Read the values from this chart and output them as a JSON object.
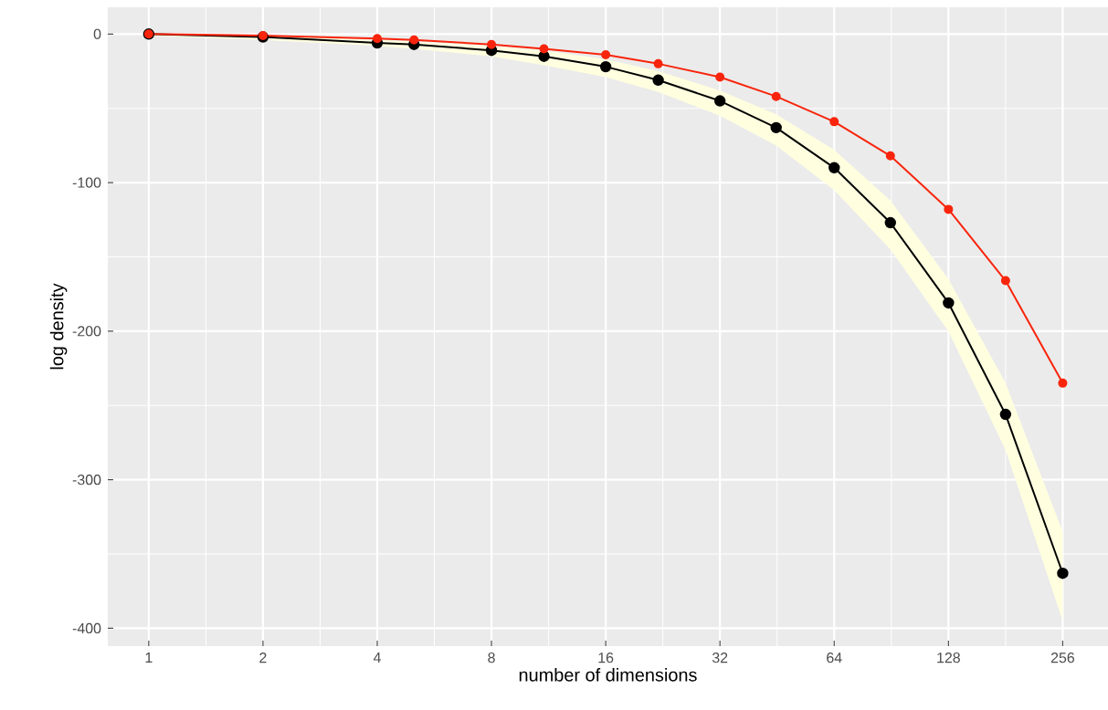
{
  "chart_data": {
    "type": "line",
    "xlabel": "number of dimensions",
    "ylabel": "log density",
    "x": [
      1,
      2,
      4,
      5,
      8,
      11,
      16,
      22,
      32,
      45,
      64,
      90,
      128,
      181,
      256
    ],
    "series": [
      {
        "color": "#000000",
        "values": [
          0,
          -2,
          -6,
          -7,
          -11,
          -15,
          -22,
          -31,
          -45,
          -63,
          -90,
          -127,
          -181,
          -256,
          -363
        ],
        "lower": [
          -1,
          -4,
          -8,
          -10,
          -15,
          -21,
          -29,
          -39,
          -55,
          -75,
          -105,
          -145,
          -200,
          -280,
          -395
        ],
        "upper": [
          0,
          -1,
          -4,
          -5,
          -8,
          -11,
          -17,
          -25,
          -38,
          -54,
          -78,
          -112,
          -165,
          -235,
          -335
        ]
      },
      {
        "color": "#f8250c",
        "values": [
          0,
          -1,
          -3,
          -4,
          -7,
          -10,
          -14,
          -20,
          -29,
          -42,
          -59,
          -82,
          -118,
          -166,
          -235
        ]
      }
    ],
    "log": "x",
    "xlim": [
      0.78,
      337
    ],
    "ylim": [
      -412,
      18
    ],
    "xticks": [
      1,
      2,
      4,
      8,
      16,
      32,
      64,
      128,
      256
    ],
    "yticks": [
      0,
      -100,
      -200,
      -300,
      -400
    ],
    "grid": true,
    "marker": "circle",
    "line_style": "solid"
  }
}
